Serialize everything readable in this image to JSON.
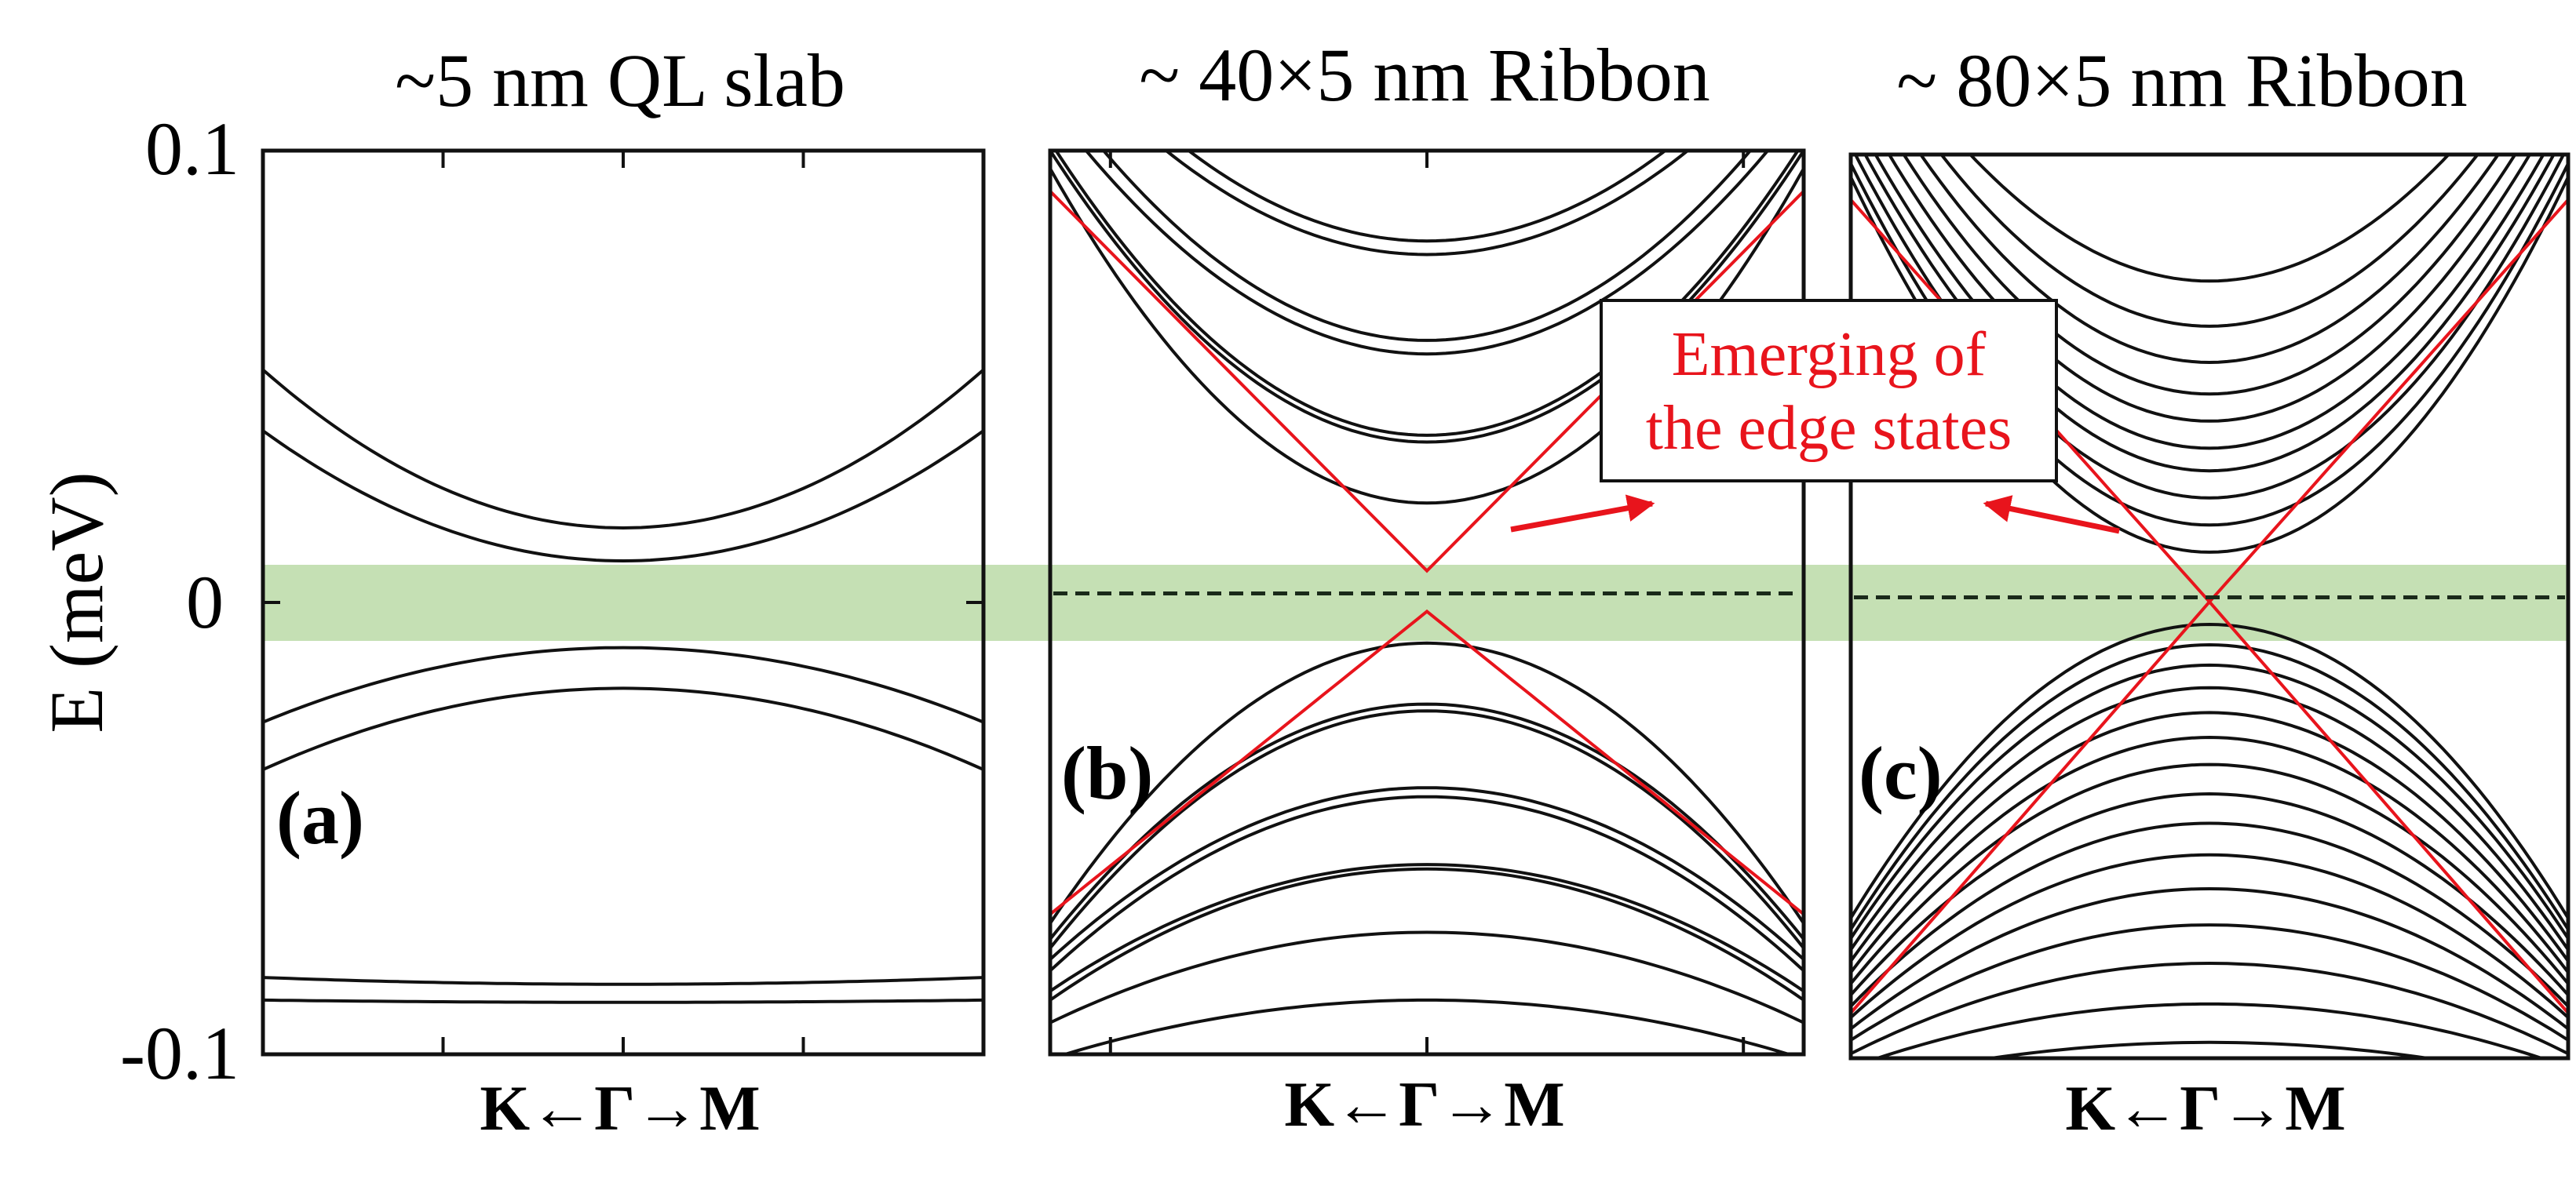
{
  "figure": {
    "ylabel": "E (meV)",
    "ytick_labels": [
      "0.1",
      "0",
      "-0.1"
    ],
    "xlabel_parts": [
      "K",
      "←",
      "Γ",
      "→",
      "M"
    ],
    "fermi_band_color": "#c5e0b4",
    "edge_state_color": "#e8141c",
    "band_color": "#111111",
    "annotation": {
      "lines": [
        "Emerging of",
        "the edge states"
      ],
      "color": "#e8141c"
    }
  },
  "chart_data": [
    {
      "type": "line",
      "panel_label": "(a)",
      "title": "~5 nm QL slab",
      "xlabel": "K←Γ→M",
      "ylabel": "E (meV)",
      "x_range": [
        -1,
        1
      ],
      "ylim": [
        -0.1,
        0.1
      ],
      "yticks": [
        0.1,
        0,
        -0.1
      ],
      "fermi_window": [
        -0.008,
        0.008
      ],
      "bands": [
        {
          "kind": "parabola",
          "at_gamma": 0.0165,
          "at_edge": 0.0515
        },
        {
          "kind": "parabola",
          "at_gamma": 0.0092,
          "at_edge": 0.038
        },
        {
          "kind": "parabola",
          "at_gamma": -0.01,
          "at_edge": -0.0265
        },
        {
          "kind": "parabola",
          "at_gamma": -0.019,
          "at_edge": -0.037
        },
        {
          "kind": "parabola",
          "at_gamma": -0.0845,
          "at_edge": -0.083
        },
        {
          "kind": "parabola",
          "at_gamma": -0.0885,
          "at_edge": -0.088
        }
      ]
    },
    {
      "type": "line",
      "panel_label": "(b)",
      "title": "~ 40×5 nm Ribbon",
      "xlabel": "K←Γ→M",
      "x_range": [
        -1,
        1
      ],
      "ylim": [
        -0.1,
        0.1
      ],
      "fermi_level": 0.002,
      "fermi_window": [
        -0.008,
        0.008
      ],
      "edge_states": [
        {
          "kind": "vee",
          "at_gamma": 0.007,
          "at_edge": 0.091
        },
        {
          "kind": "vee",
          "at_gamma": -0.002,
          "at_edge": -0.069
        }
      ],
      "bands": [
        {
          "kind": "parabola",
          "at_gamma": 0.08,
          "at_edge": 0.13
        },
        {
          "kind": "parabola",
          "at_gamma": 0.077,
          "at_edge": 0.125
        },
        {
          "kind": "parabola",
          "at_gamma": 0.058,
          "at_edge": 0.115
        },
        {
          "kind": "parabola",
          "at_gamma": 0.055,
          "at_edge": 0.11
        },
        {
          "kind": "parabola",
          "at_gamma": 0.037,
          "at_edge": 0.102
        },
        {
          "kind": "parabola",
          "at_gamma": 0.0355,
          "at_edge": 0.1
        },
        {
          "kind": "parabola",
          "at_gamma": 0.022,
          "at_edge": 0.096
        },
        {
          "kind": "parabola",
          "at_gamma": -0.009,
          "at_edge": -0.071
        },
        {
          "kind": "parabola",
          "at_gamma": -0.0225,
          "at_edge": -0.0745
        },
        {
          "kind": "parabola",
          "at_gamma": -0.024,
          "at_edge": -0.0765
        },
        {
          "kind": "parabola",
          "at_gamma": -0.041,
          "at_edge": -0.079
        },
        {
          "kind": "parabola",
          "at_gamma": -0.043,
          "at_edge": -0.0815
        },
        {
          "kind": "parabola",
          "at_gamma": -0.058,
          "at_edge": -0.086
        },
        {
          "kind": "parabola",
          "at_gamma": -0.059,
          "at_edge": -0.088
        },
        {
          "kind": "parabola",
          "at_gamma": -0.073,
          "at_edge": -0.093
        },
        {
          "kind": "parabola",
          "at_gamma": -0.088,
          "at_edge": -0.101
        }
      ]
    },
    {
      "type": "line",
      "panel_label": "(c)",
      "title": "~ 80×5 nm Ribbon",
      "xlabel": "K←Γ→M",
      "x_range": [
        -1,
        1
      ],
      "ylim": [
        -0.1,
        0.1
      ],
      "fermi_level": 0.002,
      "fermi_window": [
        -0.008,
        0.008
      ],
      "edge_states": [
        {
          "kind": "vee",
          "at_gamma": 0.001,
          "at_edge": 0.09
        },
        {
          "kind": "vee",
          "at_gamma": 0.001,
          "at_edge": -0.09
        }
      ],
      "bands": [
        {
          "kind": "parabola",
          "at_gamma": 0.072,
          "at_edge": 0.135
        },
        {
          "kind": "parabola",
          "at_gamma": 0.062,
          "at_edge": 0.13
        },
        {
          "kind": "parabola",
          "at_gamma": 0.054,
          "at_edge": 0.125
        },
        {
          "kind": "parabola",
          "at_gamma": 0.047,
          "at_edge": 0.12
        },
        {
          "kind": "parabola",
          "at_gamma": 0.041,
          "at_edge": 0.115
        },
        {
          "kind": "parabola",
          "at_gamma": 0.035,
          "at_edge": 0.11
        },
        {
          "kind": "parabola",
          "at_gamma": 0.03,
          "at_edge": 0.106
        },
        {
          "kind": "parabola",
          "at_gamma": 0.024,
          "at_edge": 0.102
        },
        {
          "kind": "parabola",
          "at_gamma": 0.018,
          "at_edge": 0.098
        },
        {
          "kind": "parabola",
          "at_gamma": 0.012,
          "at_edge": 0.095
        },
        {
          "kind": "parabola",
          "at_gamma": -0.004,
          "at_edge": -0.069
        },
        {
          "kind": "parabola",
          "at_gamma": -0.0085,
          "at_edge": -0.0715
        },
        {
          "kind": "parabola",
          "at_gamma": -0.013,
          "at_edge": -0.0735
        },
        {
          "kind": "parabola",
          "at_gamma": -0.018,
          "at_edge": -0.076
        },
        {
          "kind": "parabola",
          "at_gamma": -0.0235,
          "at_edge": -0.0785
        },
        {
          "kind": "parabola",
          "at_gamma": -0.029,
          "at_edge": -0.081
        },
        {
          "kind": "parabola",
          "at_gamma": -0.035,
          "at_edge": -0.0835
        },
        {
          "kind": "parabola",
          "at_gamma": -0.0415,
          "at_edge": -0.086
        },
        {
          "kind": "parabola",
          "at_gamma": -0.048,
          "at_edge": -0.0885
        },
        {
          "kind": "parabola",
          "at_gamma": -0.055,
          "at_edge": -0.091
        },
        {
          "kind": "parabola",
          "at_gamma": -0.0625,
          "at_edge": -0.0935
        },
        {
          "kind": "parabola",
          "at_gamma": -0.0705,
          "at_edge": -0.096
        },
        {
          "kind": "parabola",
          "at_gamma": -0.079,
          "at_edge": -0.099
        },
        {
          "kind": "parabola",
          "at_gamma": -0.088,
          "at_edge": -0.102
        },
        {
          "kind": "parabola",
          "at_gamma": -0.0965,
          "at_edge": -0.106
        }
      ]
    }
  ]
}
